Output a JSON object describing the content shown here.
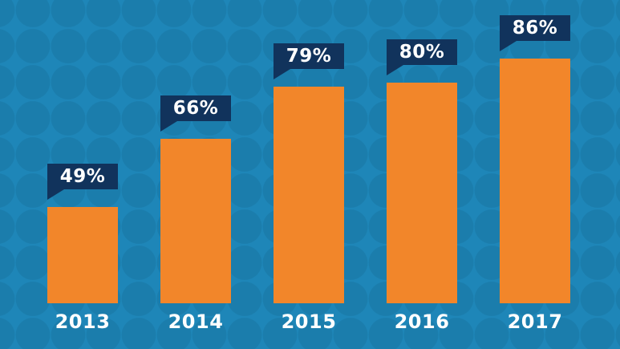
{
  "chart_data": {
    "type": "bar",
    "title": "",
    "categories": [
      "2013",
      "2014",
      "2015",
      "2016",
      "2017"
    ],
    "values": [
      49,
      66,
      79,
      80,
      86
    ],
    "value_labels": [
      "49%",
      "66%",
      "79%",
      "80%",
      "86%"
    ],
    "xlabel": "",
    "ylabel": "",
    "ylim": [
      0,
      100
    ],
    "grid": false,
    "legend": "none",
    "annotation_style": "navy speech-bubble callout above each bar with down-left tail",
    "colors": {
      "bar": "#f2862a",
      "callout": "#11335c",
      "label_text": "#ffffff",
      "axis_text": "#ffffff"
    }
  },
  "background": {
    "pattern": "dot-grid",
    "base_color": "#1e86b8",
    "dot_color": "#1b7dac"
  }
}
